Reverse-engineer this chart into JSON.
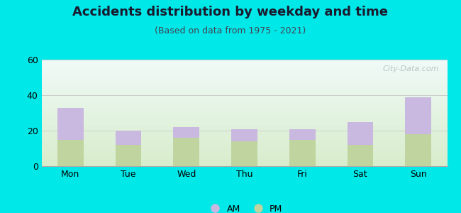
{
  "title": "Accidents distribution by weekday and time",
  "subtitle": "(Based on data from 1975 - 2021)",
  "categories": [
    "Mon",
    "Tue",
    "Wed",
    "Thu",
    "Fri",
    "Sat",
    "Sun"
  ],
  "pm_values": [
    15,
    12,
    16,
    14,
    15,
    12,
    18
  ],
  "am_values": [
    18,
    8,
    6,
    7,
    6,
    13,
    21
  ],
  "am_color": "#c9b8e0",
  "pm_color": "#c0d4a0",
  "ylim": [
    0,
    60
  ],
  "yticks": [
    0,
    20,
    40,
    60
  ],
  "bg_top": "#f0faf8",
  "bg_bottom": "#d8edcc",
  "fig_bg": "#00e8e8",
  "title_fontsize": 13,
  "subtitle_fontsize": 9,
  "tick_fontsize": 9,
  "legend_fontsize": 9,
  "watermark_text": "City-Data.com"
}
